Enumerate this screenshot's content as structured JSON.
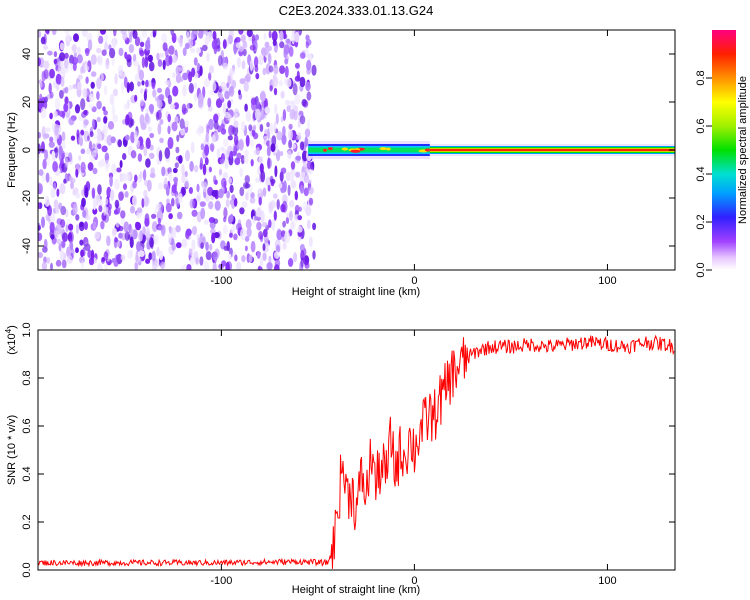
{
  "title": "C2E3.2024.333.01.13.G24",
  "chart_data": [
    {
      "type": "heatmap",
      "xlabel": "Height of straight line (km)",
      "ylabel": "Frequency (Hz)",
      "xlim": [
        -195,
        135
      ],
      "ylim": [
        -50,
        50
      ],
      "x_ticks": [
        -100,
        0,
        100
      ],
      "y_ticks": [
        -40,
        -20,
        0,
        20,
        40
      ],
      "noise_region_x": [
        -195,
        -55
      ],
      "signal_line": {
        "frequency_hz": 0,
        "x_start": -55,
        "x_end": 135
      },
      "colorbar": {
        "label": "Normalized spectral amplitude",
        "range": [
          0,
          1
        ],
        "ticks": [
          "0.0",
          "0.2",
          "0.4",
          "0.6",
          "0.8"
        ]
      },
      "grid": false
    },
    {
      "type": "line",
      "xlabel": "Height of straight line (km)",
      "ylabel": "SNR (10 * v/v)",
      "scale_label": "(x10",
      "scale_exp": "4",
      "scale_close": ")",
      "xlim": [
        -195,
        135
      ],
      "ylim": [
        0,
        1.0
      ],
      "x_ticks": [
        -100,
        0,
        100
      ],
      "y_ticks": [
        "0.0",
        "0.2",
        "0.4",
        "0.6",
        "0.8",
        "1.0"
      ],
      "series": [
        {
          "color": "#ff0000",
          "x": [
            -195,
            -150,
            -100,
            -60,
            -45,
            -42,
            -40,
            -37,
            -35,
            -33,
            -30,
            -27,
            -25,
            -22,
            -20,
            -17,
            -15,
            -12,
            -10,
            -7,
            -5,
            -2,
            0,
            3,
            5,
            8,
            10,
            12,
            15,
            18,
            20,
            23,
            25,
            30,
            35,
            40,
            50,
            60,
            70,
            80,
            90,
            100,
            110,
            120,
            130,
            135
          ],
          "y": [
            0.03,
            0.03,
            0.03,
            0.035,
            0.03,
            0.08,
            0.25,
            0.45,
            0.3,
            0.35,
            0.25,
            0.4,
            0.3,
            0.5,
            0.35,
            0.45,
            0.38,
            0.55,
            0.42,
            0.5,
            0.48,
            0.55,
            0.5,
            0.58,
            0.6,
            0.65,
            0.62,
            0.7,
            0.72,
            0.8,
            0.82,
            0.85,
            0.86,
            0.9,
            0.92,
            0.93,
            0.93,
            0.94,
            0.93,
            0.94,
            0.95,
            0.94,
            0.93,
            0.95,
            0.94,
            0.93
          ]
        }
      ],
      "grid": false
    }
  ]
}
